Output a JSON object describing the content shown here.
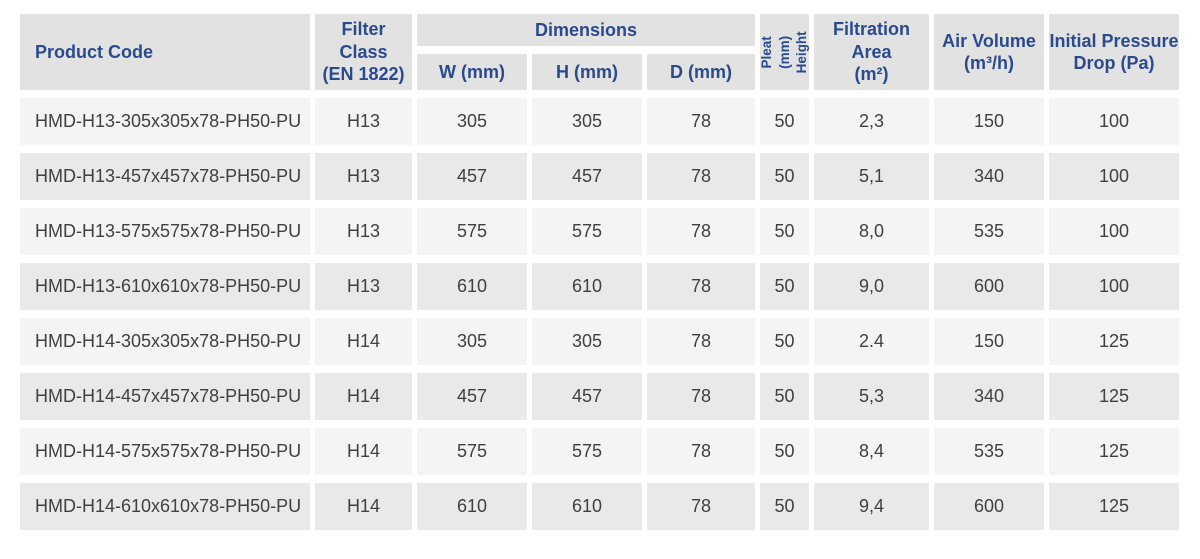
{
  "table": {
    "headers": {
      "product_code": "Product Code",
      "filter_class": "Filter Class\n(EN 1822)",
      "dimensions_group": "Dimensions",
      "w": "W (mm)",
      "h": "H (mm)",
      "d": "D (mm)",
      "pleat_height": "Pleat (mm)\nHeight",
      "filtration_area": "Filtration\nArea\n(m²)",
      "air_volume": "Air Volume\n(m³/h)",
      "initial_pressure_drop": "Initial Pressure\nDrop (Pa)"
    },
    "rows": [
      {
        "product_code": "HMD-H13-305x305x78-PH50-PU",
        "filter_class": "H13",
        "w": "305",
        "h": "305",
        "d": "78",
        "pleat_height": "50",
        "filtration_area": "2,3",
        "air_volume": "150",
        "pressure_drop": "100"
      },
      {
        "product_code": "HMD-H13-457x457x78-PH50-PU",
        "filter_class": "H13",
        "w": "457",
        "h": "457",
        "d": "78",
        "pleat_height": "50",
        "filtration_area": "5,1",
        "air_volume": "340",
        "pressure_drop": "100"
      },
      {
        "product_code": "HMD-H13-575x575x78-PH50-PU",
        "filter_class": "H13",
        "w": "575",
        "h": "575",
        "d": "78",
        "pleat_height": "50",
        "filtration_area": "8,0",
        "air_volume": "535",
        "pressure_drop": "100"
      },
      {
        "product_code": "HMD-H13-610x610x78-PH50-PU",
        "filter_class": "H13",
        "w": "610",
        "h": "610",
        "d": "78",
        "pleat_height": "50",
        "filtration_area": "9,0",
        "air_volume": "600",
        "pressure_drop": "100"
      },
      {
        "product_code": "HMD-H14-305x305x78-PH50-PU",
        "filter_class": "H14",
        "w": "305",
        "h": "305",
        "d": "78",
        "pleat_height": "50",
        "filtration_area": "2.4",
        "air_volume": "150",
        "pressure_drop": "125"
      },
      {
        "product_code": "HMD-H14-457x457x78-PH50-PU",
        "filter_class": "H14",
        "w": "457",
        "h": "457",
        "d": "78",
        "pleat_height": "50",
        "filtration_area": "5,3",
        "air_volume": "340",
        "pressure_drop": "125"
      },
      {
        "product_code": "HMD-H14-575x575x78-PH50-PU",
        "filter_class": "H14",
        "w": "575",
        "h": "575",
        "d": "78",
        "pleat_height": "50",
        "filtration_area": "8,4",
        "air_volume": "535",
        "pressure_drop": "125"
      },
      {
        "product_code": "HMD-H14-610x610x78-PH50-PU",
        "filter_class": "H14",
        "w": "610",
        "h": "610",
        "d": "78",
        "pleat_height": "50",
        "filtration_area": "9,4",
        "air_volume": "600",
        "pressure_drop": "125"
      }
    ]
  },
  "colors": {
    "header_text": "#2a4a8e",
    "cell_text": "#404040",
    "header_bg": "#e2e2e2",
    "row_odd_bg": "#f4f4f4",
    "row_even_bg": "#e9e9e9"
  }
}
